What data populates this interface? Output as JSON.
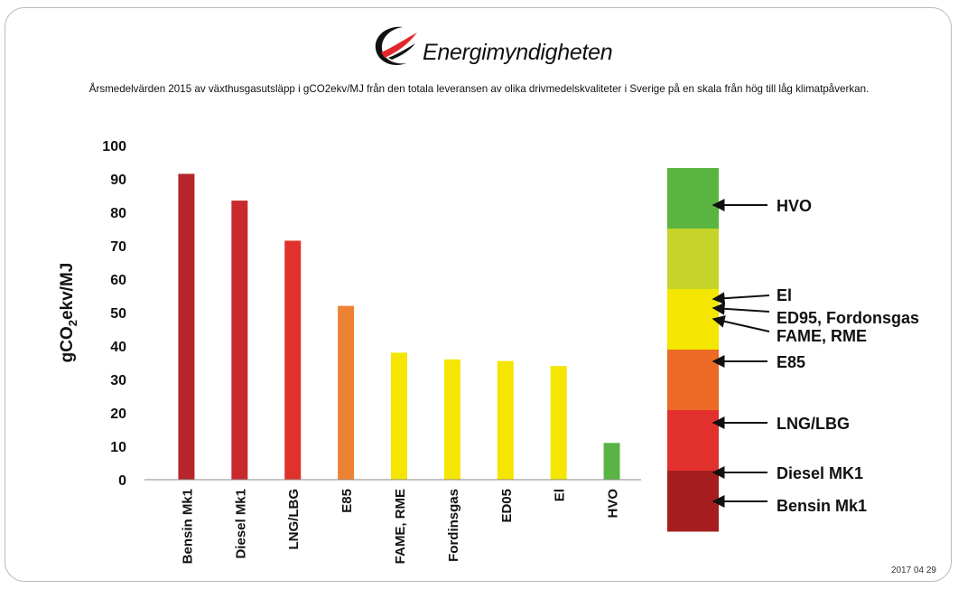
{
  "header": {
    "logo_text": "Energimyndigheten",
    "subtitle": "Årsmedelvärden 2015 av växthusgasutsläpp i gCO2ekv/MJ från den totala leveransen av olika drivmedelskvaliteter i Sverige på en skala från hög till låg klimatpåverkan."
  },
  "footer": {
    "date": "2017 04 29"
  },
  "chart_data": {
    "type": "bar",
    "ylabel": "gCO2ekv/MJ",
    "ylim": [
      0,
      100
    ],
    "yticks": [
      0,
      10,
      20,
      30,
      40,
      50,
      60,
      70,
      80,
      90,
      100
    ],
    "grid": false,
    "categories": [
      "Bensin Mk1",
      "Diesel Mk1",
      "LNG/LBG",
      "E85",
      "FAME, RME",
      "Fordinsgas",
      "ED05",
      "El",
      "HVO"
    ],
    "values": [
      91.5,
      83.5,
      71.5,
      52,
      38,
      36,
      35.5,
      34,
      11
    ],
    "colors": [
      "#b5252b",
      "#c82a2e",
      "#e0312c",
      "#ee8233",
      "#f4e600",
      "#f4e600",
      "#f4e600",
      "#f4e600",
      "#5ab445"
    ]
  },
  "scale_legend": {
    "segments": [
      "#59b440",
      "#c6d42a",
      "#f4e600",
      "#ec6a25",
      "#e2302c",
      "#a51d1f"
    ],
    "labels": [
      "HVO",
      "El",
      "ED95, Fordonsgas",
      "FAME, RME",
      "E85",
      "LNG/LBG",
      "Diesel MK1",
      "Bensin Mk1"
    ]
  },
  "colors": {
    "frame": "#b8b8b8",
    "text": "#111111",
    "axis": "#888888",
    "logo_red": "#e3262b"
  }
}
